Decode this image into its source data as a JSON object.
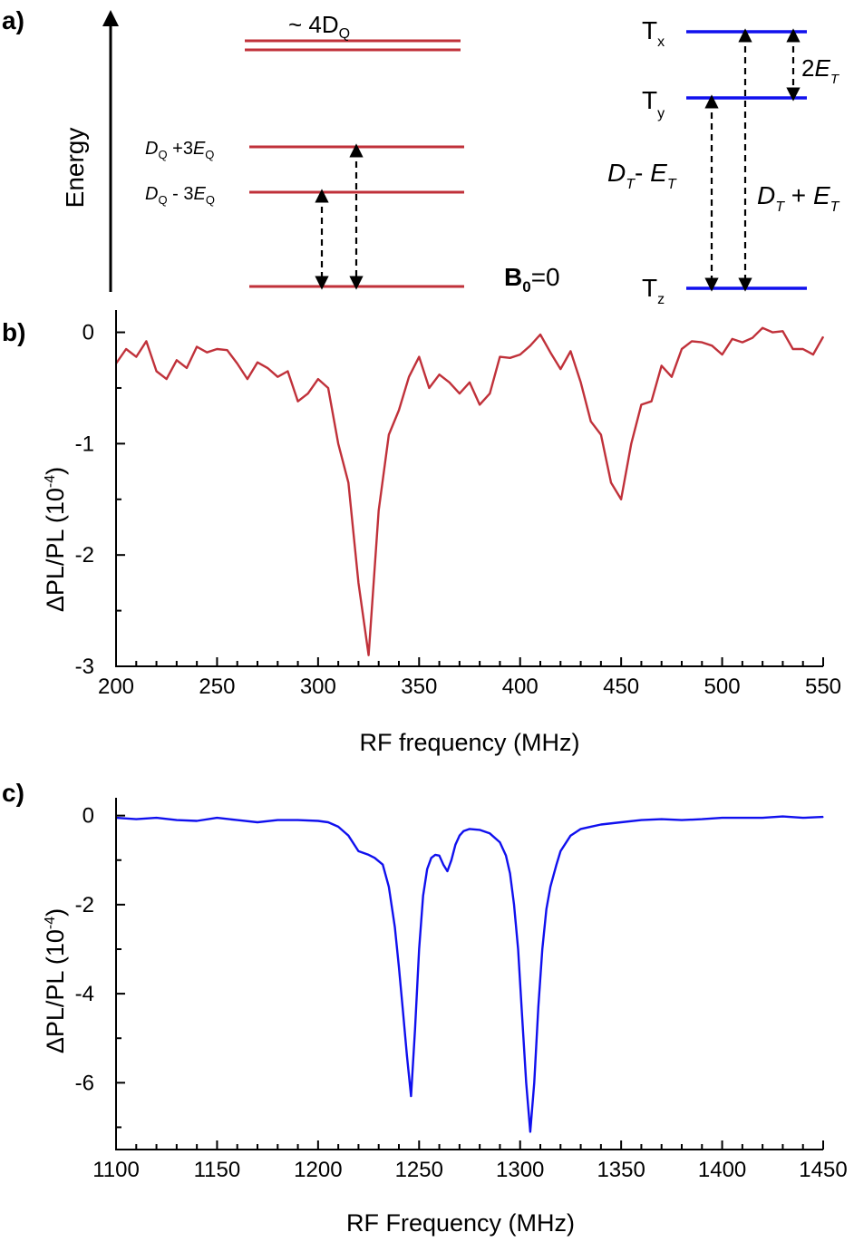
{
  "colors": {
    "red": "#c0313a",
    "blue": "#1010ee",
    "black": "#000000"
  },
  "panel_a": {
    "label": "a)",
    "energy_label": "Energy",
    "quintet": {
      "top": "~ 4D",
      "top_sub": "Q",
      "upper": {
        "a": "D",
        "a_sub": "Q",
        "b": " +3",
        "c": "E",
        "c_sub": "Q"
      },
      "lower": {
        "a": "D",
        "a_sub": "Q",
        "b": " - 3",
        "c": "E",
        "c_sub": "Q"
      },
      "field": "B",
      "field_sub": "0",
      "field_eq": "=0"
    },
    "triplet": {
      "tx": "T",
      "tx_sub": "x",
      "ty": "T",
      "ty_sub": "y",
      "tz": "T",
      "tz_sub": "z",
      "two_e": {
        "a": "2",
        "b": "E",
        "b_sub": "T"
      },
      "minus": {
        "a": "D",
        "a_sub": "T",
        "b": "- ",
        "c": "E",
        "c_sub": "T"
      },
      "plus": {
        "a": "D",
        "a_sub": "T",
        "b": " + ",
        "c": "E",
        "c_sub": "T"
      }
    }
  },
  "chart_data": [
    {
      "panel": "b)",
      "type": "line",
      "xlabel": "RF frequency (MHz)",
      "ylabel": "ΔPL/PL (10",
      "ylabel_sup": "-4",
      "ylabel_close": ")",
      "xlim": [
        200,
        550
      ],
      "ylim": [
        -3,
        0.2
      ],
      "xticks": [
        200,
        250,
        300,
        350,
        400,
        450,
        500,
        550
      ],
      "yticks": [
        0,
        -1,
        -2,
        -3
      ],
      "color": "#c0313a",
      "x": [
        200,
        205,
        210,
        215,
        220,
        225,
        230,
        235,
        240,
        245,
        250,
        255,
        260,
        265,
        270,
        275,
        280,
        285,
        290,
        295,
        300,
        305,
        310,
        315,
        320,
        325,
        330,
        335,
        340,
        345,
        350,
        355,
        360,
        365,
        370,
        375,
        380,
        385,
        390,
        395,
        400,
        405,
        410,
        415,
        420,
        425,
        430,
        435,
        440,
        445,
        450,
        455,
        460,
        465,
        470,
        475,
        480,
        485,
        490,
        495,
        500,
        505,
        510,
        515,
        520,
        525,
        530,
        535,
        540,
        545,
        550
      ],
      "y": [
        -0.28,
        -0.15,
        -0.22,
        -0.08,
        -0.35,
        -0.42,
        -0.25,
        -0.32,
        -0.13,
        -0.18,
        -0.15,
        -0.16,
        -0.28,
        -0.42,
        -0.27,
        -0.32,
        -0.4,
        -0.35,
        -0.62,
        -0.55,
        -0.42,
        -0.5,
        -1.0,
        -1.35,
        -2.25,
        -2.9,
        -1.6,
        -0.92,
        -0.7,
        -0.4,
        -0.22,
        -0.5,
        -0.38,
        -0.45,
        -0.55,
        -0.45,
        -0.65,
        -0.55,
        -0.22,
        -0.23,
        -0.2,
        -0.12,
        -0.02,
        -0.18,
        -0.33,
        -0.17,
        -0.45,
        -0.8,
        -0.92,
        -1.35,
        -1.5,
        -1.0,
        -0.65,
        -0.62,
        -0.3,
        -0.4,
        -0.15,
        -0.08,
        -0.09,
        -0.12,
        -0.2,
        -0.06,
        -0.09,
        -0.05,
        0.04,
        0.0,
        0.01,
        -0.15,
        -0.15,
        -0.2,
        -0.04
      ]
    },
    {
      "panel": "c)",
      "type": "line",
      "xlabel": "RF Frequency (MHz)",
      "ylabel": "ΔPL/PL (10",
      "ylabel_sup": "-4",
      "ylabel_close": ")",
      "xlim": [
        1100,
        1450
      ],
      "ylim": [
        -7.5,
        0.4
      ],
      "xticks": [
        1100,
        1150,
        1200,
        1250,
        1300,
        1350,
        1400,
        1450
      ],
      "yticks": [
        0,
        -2,
        -4,
        -6
      ],
      "color": "#1010ee",
      "x": [
        1100,
        1110,
        1120,
        1130,
        1140,
        1150,
        1160,
        1170,
        1180,
        1190,
        1200,
        1205,
        1210,
        1215,
        1220,
        1225,
        1228,
        1232,
        1235,
        1238,
        1240,
        1242,
        1244,
        1246,
        1248,
        1250,
        1252,
        1254,
        1256,
        1258,
        1260,
        1262,
        1264,
        1266,
        1268,
        1270,
        1272,
        1275,
        1280,
        1285,
        1290,
        1293,
        1295,
        1297,
        1299,
        1301,
        1303,
        1305,
        1307,
        1309,
        1311,
        1313,
        1315,
        1318,
        1320,
        1325,
        1330,
        1335,
        1340,
        1350,
        1360,
        1370,
        1380,
        1390,
        1400,
        1410,
        1420,
        1430,
        1440,
        1450
      ],
      "y": [
        -0.05,
        -0.08,
        -0.05,
        -0.1,
        -0.12,
        -0.05,
        -0.1,
        -0.15,
        -0.1,
        -0.1,
        -0.12,
        -0.15,
        -0.25,
        -0.45,
        -0.8,
        -0.88,
        -0.95,
        -1.1,
        -1.6,
        -2.5,
        -3.4,
        -4.4,
        -5.4,
        -6.3,
        -4.8,
        -3.0,
        -1.8,
        -1.2,
        -0.95,
        -0.88,
        -0.9,
        -1.1,
        -1.25,
        -1.0,
        -0.65,
        -0.45,
        -0.35,
        -0.3,
        -0.32,
        -0.4,
        -0.6,
        -0.9,
        -1.3,
        -2.0,
        -3.0,
        -4.5,
        -6.0,
        -7.1,
        -6.0,
        -4.3,
        -3.0,
        -2.1,
        -1.6,
        -1.1,
        -0.8,
        -0.45,
        -0.3,
        -0.25,
        -0.2,
        -0.15,
        -0.1,
        -0.08,
        -0.1,
        -0.08,
        -0.05,
        -0.05,
        -0.05,
        -0.02,
        -0.05,
        -0.03
      ]
    }
  ]
}
